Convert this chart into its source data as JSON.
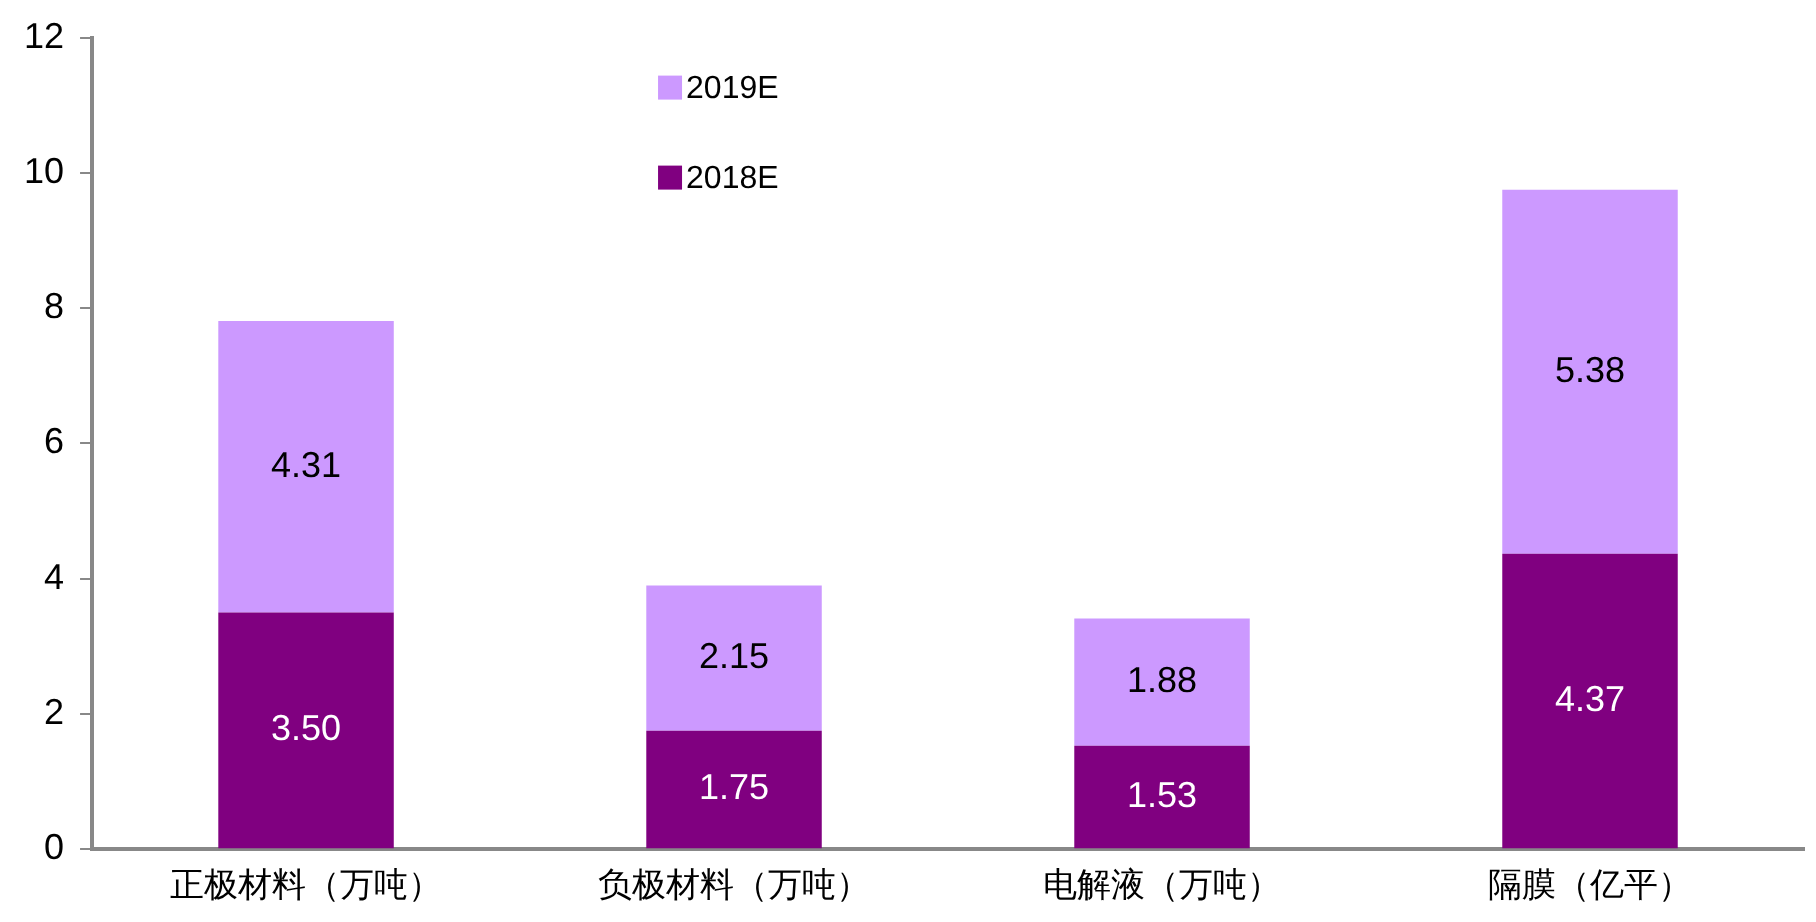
{
  "chart_data": {
    "type": "bar",
    "stacked": true,
    "categories": [
      "正极材料（万吨）",
      "负极材料（万吨）",
      "电解液（万吨）",
      "隔膜（亿平）"
    ],
    "series": [
      {
        "name": "2018E",
        "color": "#800080",
        "values": [
          3.5,
          1.75,
          1.53,
          4.37
        ],
        "value_labels": [
          "3.50",
          "1.75",
          "1.53",
          "4.37"
        ]
      },
      {
        "name": "2019E",
        "color": "#cc99ff",
        "values": [
          4.31,
          2.15,
          1.88,
          5.38
        ],
        "value_labels": [
          "4.31",
          "2.15",
          "1.88",
          "5.38"
        ]
      }
    ],
    "ylim": [
      0,
      12
    ],
    "yticks": [
      0,
      2,
      4,
      6,
      8,
      10,
      12
    ],
    "grid": false,
    "legend": "top"
  }
}
